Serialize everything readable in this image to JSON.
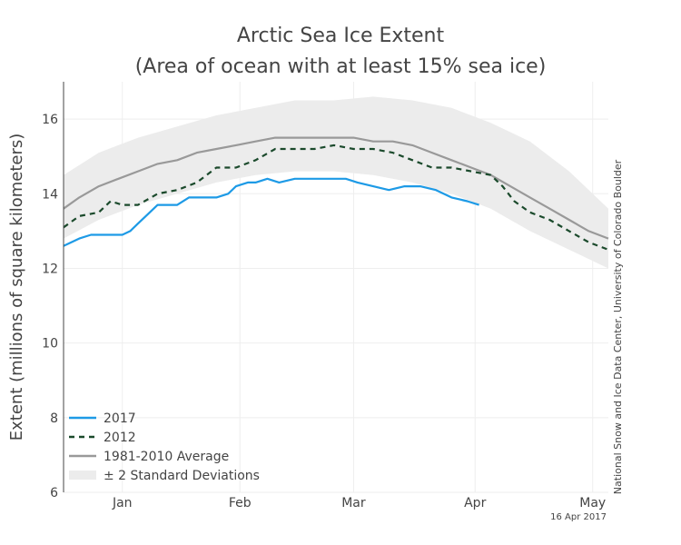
{
  "chart_data": {
    "type": "line",
    "title": "Arctic Sea Ice Extent",
    "subtitle": "(Area of ocean with at least 15% sea ice)",
    "ylabel": "Extent (millions of square kilometers)",
    "xlabel": "",
    "ylim": [
      6,
      17
    ],
    "xlim": [
      1,
      140
    ],
    "yticks": [
      6,
      8,
      10,
      12,
      14,
      16
    ],
    "xticks": [
      {
        "label": "Jan",
        "x": 16
      },
      {
        "label": "Feb",
        "x": 46
      },
      {
        "label": "Mar",
        "x": 75
      },
      {
        "label": "Apr",
        "x": 106
      },
      {
        "label": "May",
        "x": 136
      }
    ],
    "grid": true,
    "legend_position": "bottom-left",
    "credit": "National Snow and Ice Data Center, University of Colorado Boulder",
    "date": "16 Apr 2017",
    "band": {
      "name": "± 2 Standard Deviations",
      "color": "#ececec",
      "x": [
        1,
        10,
        20,
        30,
        40,
        50,
        60,
        70,
        80,
        90,
        100,
        110,
        120,
        130,
        140
      ],
      "upper": [
        14.5,
        15.1,
        15.5,
        15.8,
        16.1,
        16.3,
        16.5,
        16.5,
        16.6,
        16.5,
        16.3,
        15.9,
        15.4,
        14.6,
        13.6
      ],
      "lower": [
        12.8,
        13.3,
        13.7,
        14.0,
        14.3,
        14.5,
        14.6,
        14.6,
        14.5,
        14.3,
        14.0,
        13.6,
        13.0,
        12.5,
        12.0
      ]
    },
    "series": [
      {
        "name": "1981-2010 Average",
        "style": "solid",
        "color": "#999999",
        "x": [
          1,
          5,
          10,
          15,
          20,
          25,
          30,
          35,
          40,
          45,
          50,
          55,
          60,
          65,
          70,
          75,
          80,
          85,
          90,
          95,
          100,
          105,
          110,
          115,
          120,
          125,
          130,
          135,
          140
        ],
        "values": [
          13.6,
          13.9,
          14.2,
          14.4,
          14.6,
          14.8,
          14.9,
          15.1,
          15.2,
          15.3,
          15.4,
          15.5,
          15.5,
          15.5,
          15.5,
          15.5,
          15.4,
          15.4,
          15.3,
          15.1,
          14.9,
          14.7,
          14.5,
          14.2,
          13.9,
          13.6,
          13.3,
          13.0,
          12.8
        ]
      },
      {
        "name": "2012",
        "style": "dashed",
        "color": "#1b4a2c",
        "x": [
          1,
          5,
          10,
          13,
          16,
          20,
          25,
          30,
          35,
          40,
          45,
          50,
          55,
          60,
          65,
          70,
          75,
          80,
          85,
          90,
          95,
          100,
          105,
          110,
          113,
          116,
          120,
          125,
          130,
          135,
          140
        ],
        "values": [
          13.1,
          13.4,
          13.5,
          13.8,
          13.7,
          13.7,
          14.0,
          14.1,
          14.3,
          14.7,
          14.7,
          14.9,
          15.2,
          15.2,
          15.2,
          15.3,
          15.2,
          15.2,
          15.1,
          14.9,
          14.7,
          14.7,
          14.6,
          14.5,
          14.2,
          13.8,
          13.5,
          13.3,
          13.0,
          12.7,
          12.5
        ]
      },
      {
        "name": "2017",
        "style": "solid",
        "color": "#1d9ae6",
        "x": [
          1,
          5,
          8,
          10,
          13,
          16,
          18,
          20,
          22,
          25,
          28,
          30,
          33,
          36,
          40,
          43,
          45,
          48,
          50,
          53,
          56,
          60,
          65,
          68,
          70,
          73,
          76,
          80,
          84,
          88,
          92,
          96,
          100,
          104,
          107
        ],
        "values": [
          12.6,
          12.8,
          12.9,
          12.9,
          12.9,
          12.9,
          13.0,
          13.2,
          13.4,
          13.7,
          13.7,
          13.7,
          13.9,
          13.9,
          13.9,
          14.0,
          14.2,
          14.3,
          14.3,
          14.4,
          14.3,
          14.4,
          14.4,
          14.4,
          14.4,
          14.4,
          14.3,
          14.2,
          14.1,
          14.2,
          14.2,
          14.1,
          13.9,
          13.8,
          13.7
        ]
      }
    ]
  }
}
